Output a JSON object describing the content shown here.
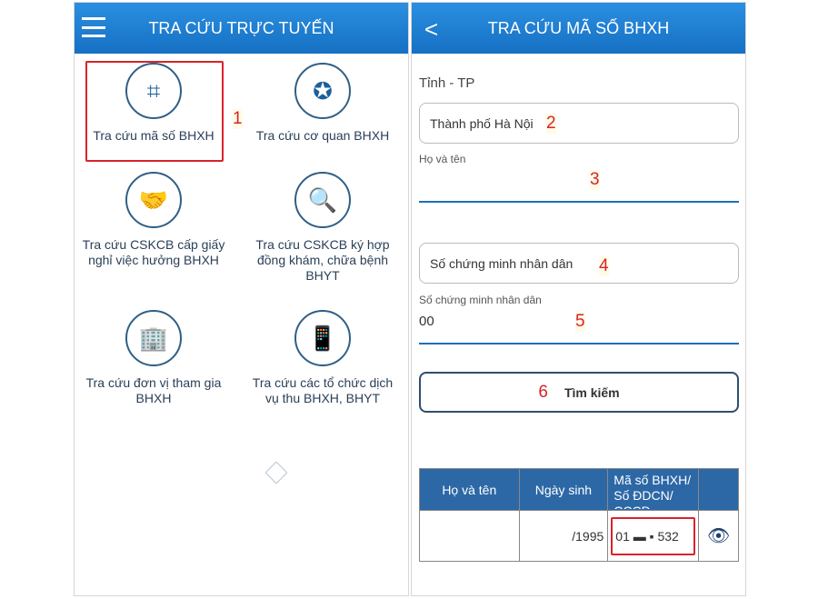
{
  "left": {
    "title": "TRA CỨU TRỰC TUYẾN",
    "items": [
      {
        "label": "Tra cứu mã số BHXH",
        "icon": "qr-code-icon"
      },
      {
        "label": "Tra cứu cơ quan BHXH",
        "icon": "location-star-icon"
      },
      {
        "label": "Tra cứu CSKCB cấp giấy nghỉ việc hưởng BHXH",
        "icon": "handshake-document-icon"
      },
      {
        "label": "Tra cứu CSKCB ký hợp đồng khám, chữa bệnh BHYT",
        "icon": "document-search-icon"
      },
      {
        "label": "Tra cứu đơn vị tham gia BHXH",
        "icon": "building-person-icon"
      },
      {
        "label": "Tra cứu các tổ chức dịch vụ thu BHXH, BHYT",
        "icon": "phone-search-icon"
      }
    ]
  },
  "right": {
    "title": "TRA CỨU MÃ SỐ BHXH",
    "province_label": "Tỉnh - TP",
    "province_value": "Thành phố Hà Nội",
    "name_label": "Họ và tên",
    "name_value": "",
    "id_placeholder": "Số chứng minh nhân dân",
    "id_label": "Số chứng minh nhân dân",
    "id_value": "00",
    "search_button": "Tìm kiếm",
    "table": {
      "headers": [
        "Họ và tên",
        "Ngày sinh",
        "Mã số BHXH/ Số ĐDCN/ CCCD"
      ],
      "row": {
        "name": "",
        "dob": "/1995",
        "code": "01 ▬ ▪ 532"
      }
    }
  },
  "annotations": [
    "1",
    "2",
    "3",
    "4",
    "5",
    "6"
  ],
  "colors": {
    "header": "#1a7fd4",
    "highlight": "#d8232a",
    "table_header": "#2d68a6"
  }
}
